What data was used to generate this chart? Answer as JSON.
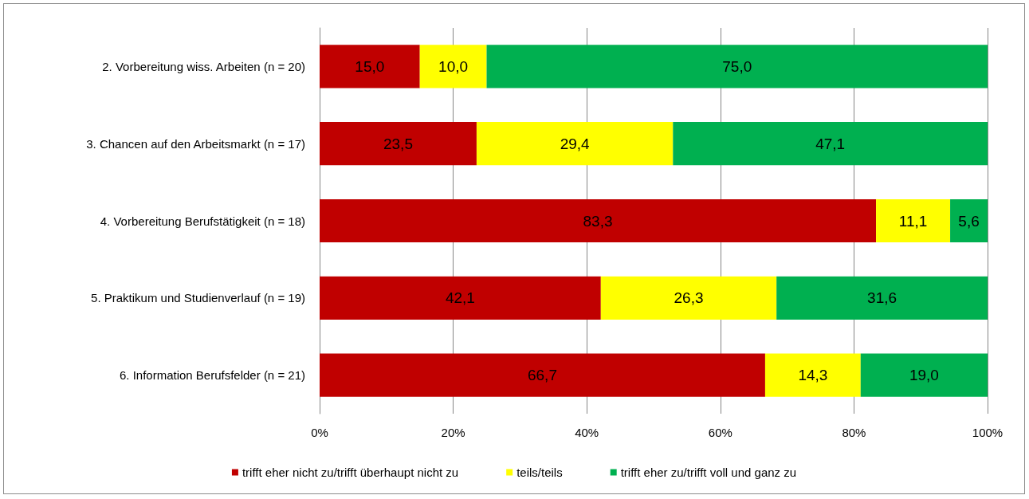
{
  "chart_data": {
    "type": "bar",
    "orientation": "horizontal",
    "stacked": true,
    "categories": [
      "2. Vorbereitung wiss. Arbeiten (n = 20)",
      "3. Chancen auf den Arbeitsmarkt (n = 17)",
      "4. Vorbereitung Berufstätigkeit (n = 18)",
      "5. Praktikum und Studienverlauf (n = 19)",
      "6. Information Berufsfelder (n = 21)"
    ],
    "series": [
      {
        "name": "trifft eher nicht zu/trifft überhaupt nicht zu",
        "color": "#c00000",
        "values": [
          15.0,
          23.5,
          83.3,
          42.1,
          66.7
        ],
        "value_labels": [
          "15,0",
          "23,5",
          "83,3",
          "42,1",
          "66,7"
        ]
      },
      {
        "name": "teils/teils",
        "color": "#ffff00",
        "values": [
          10.0,
          29.4,
          11.1,
          26.3,
          14.3
        ],
        "value_labels": [
          "10,0",
          "29,4",
          "11,1",
          "26,3",
          "14,3"
        ]
      },
      {
        "name": "trifft eher zu/trifft voll und ganz zu",
        "color": "#00b050",
        "values": [
          75.0,
          47.1,
          5.6,
          31.6,
          19.0
        ],
        "value_labels": [
          "75,0",
          "47,1",
          "5,6",
          "31,6",
          "19,0"
        ]
      }
    ],
    "xlim": [
      0,
      100
    ],
    "xticks": [
      {
        "value": 0,
        "label": "0%"
      },
      {
        "value": 20,
        "label": "20%"
      },
      {
        "value": 40,
        "label": "40%"
      },
      {
        "value": 60,
        "label": "60%"
      },
      {
        "value": 80,
        "label": "80%"
      },
      {
        "value": 100,
        "label": "100%"
      }
    ],
    "grid": "x",
    "legend": "bottom"
  }
}
